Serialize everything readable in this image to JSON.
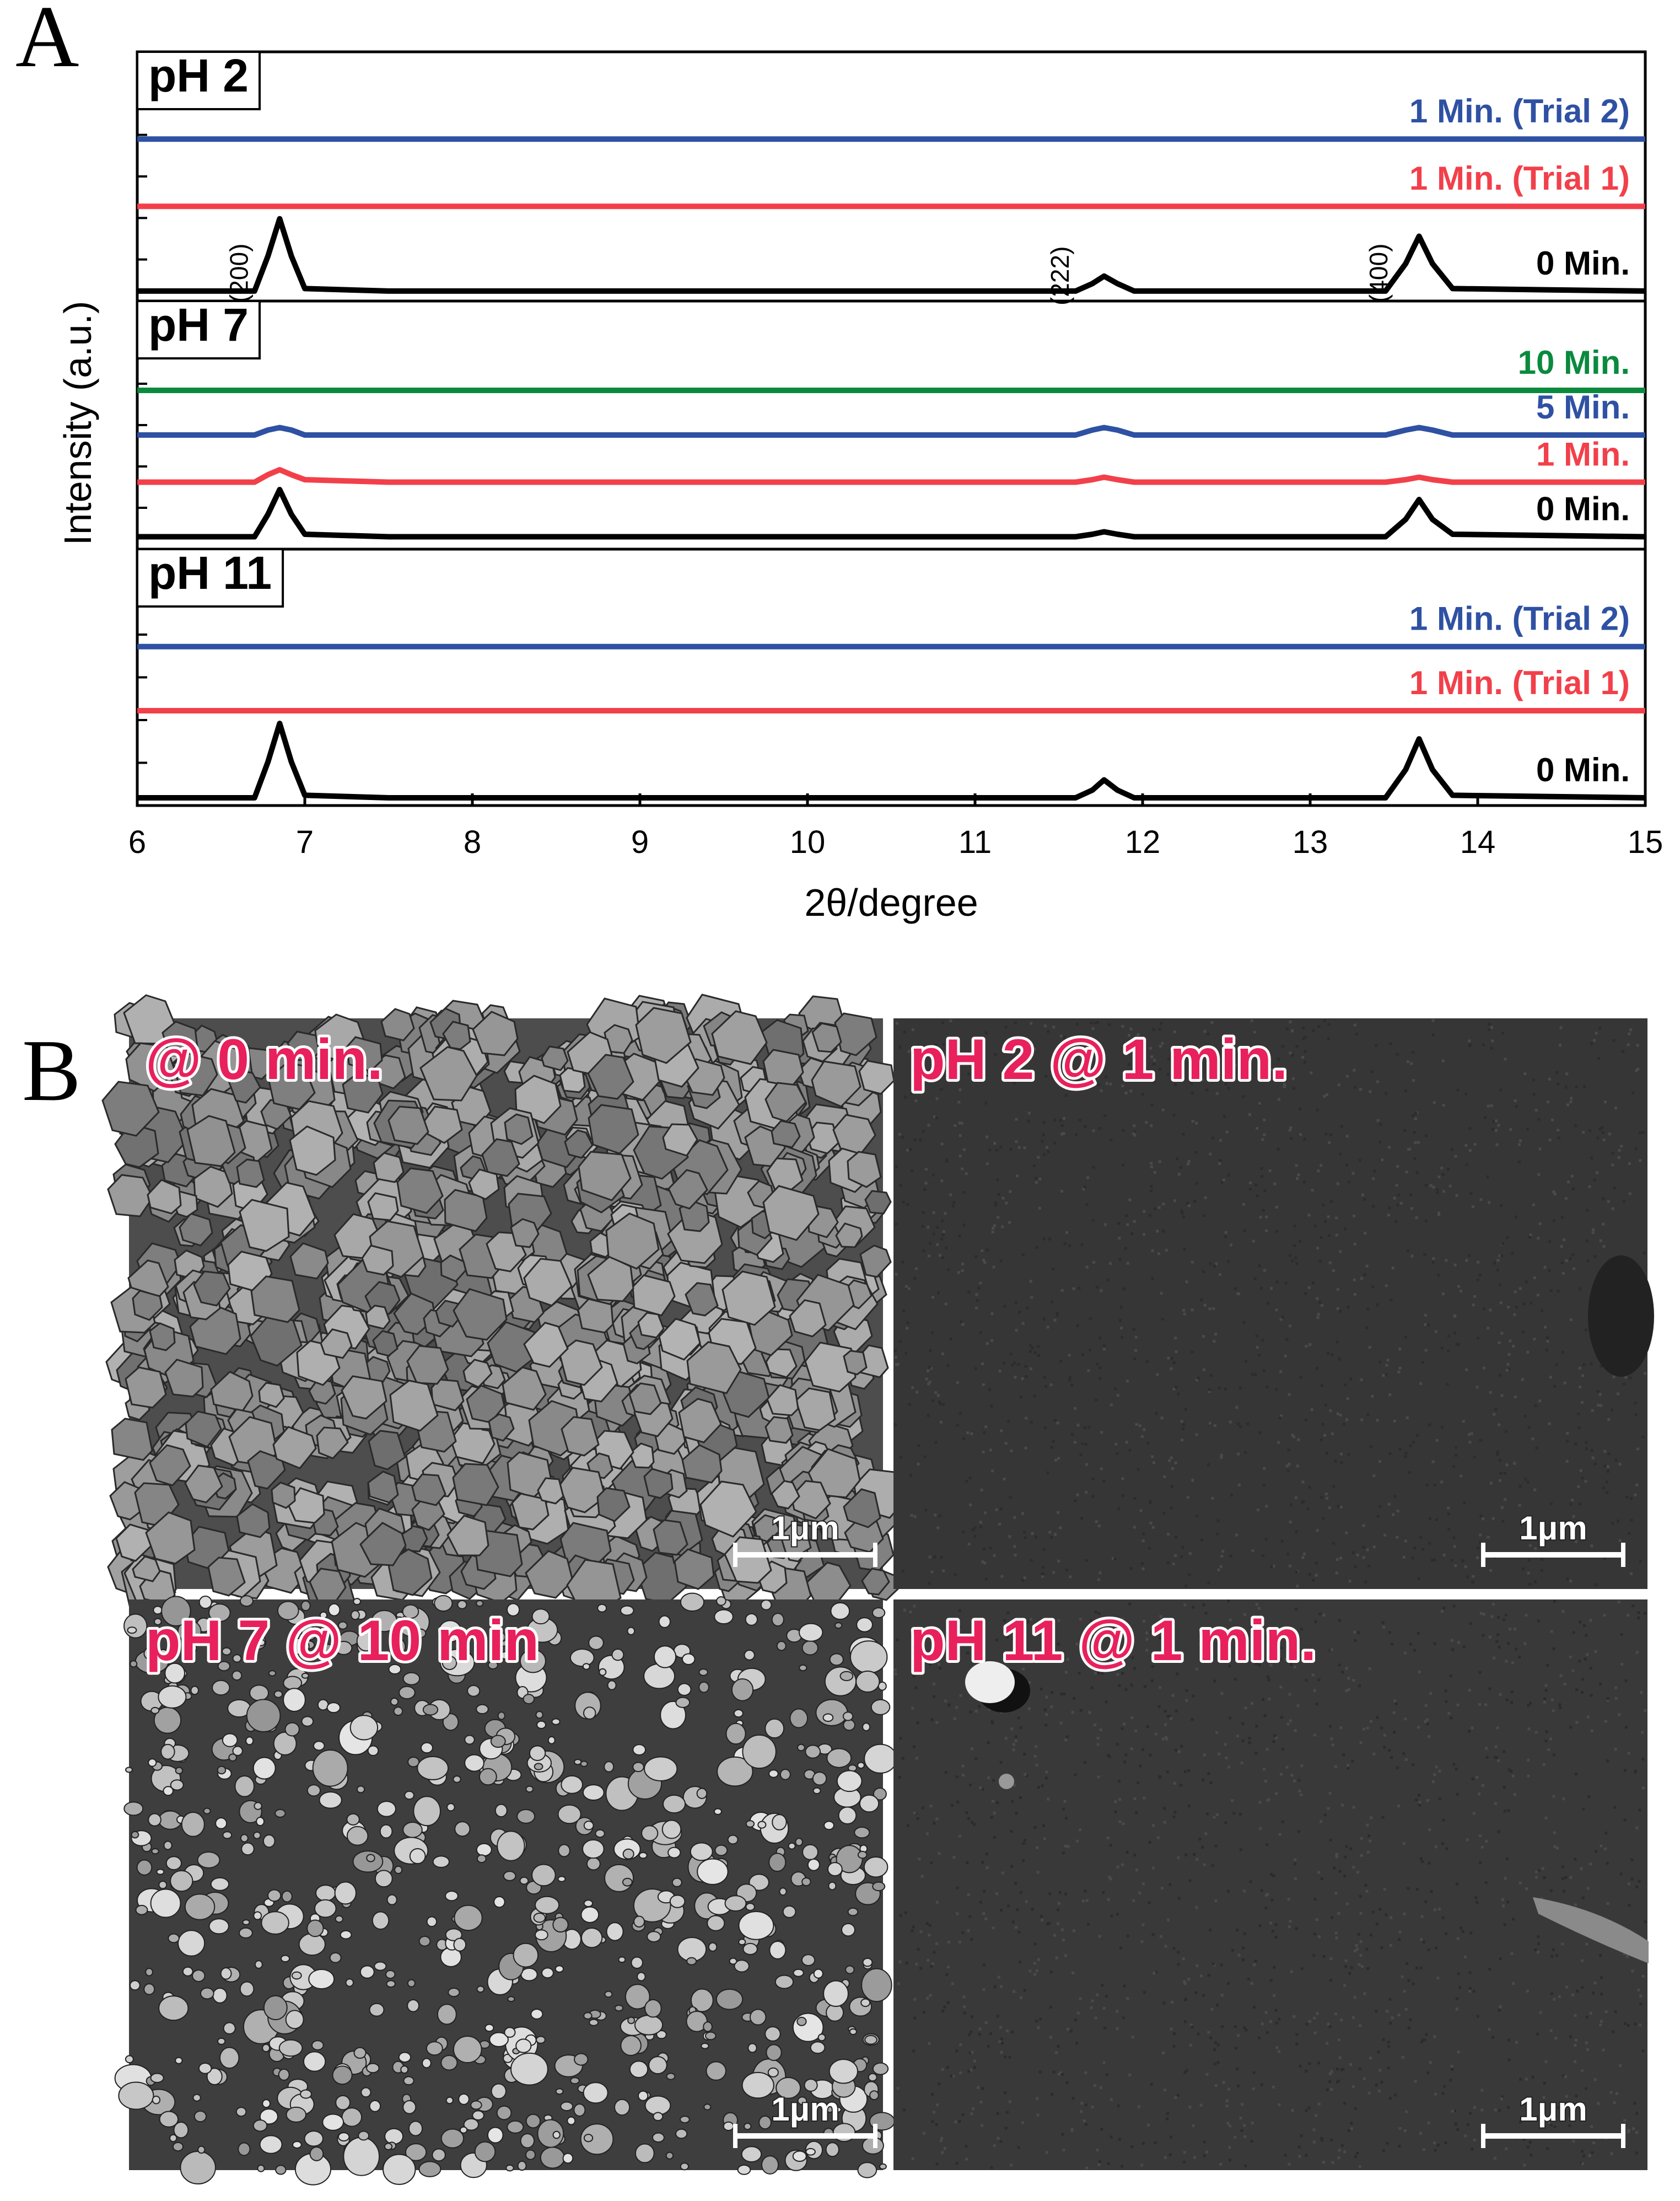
{
  "chart_data": [
    {
      "type": "line",
      "title": "pH 2",
      "x": [
        6,
        6.7,
        6.78,
        6.85,
        6.92,
        7.0,
        7.5,
        11.6,
        11.7,
        11.77,
        11.85,
        11.95,
        13.45,
        13.57,
        13.65,
        13.73,
        13.85,
        15
      ],
      "xlim": [
        6,
        15
      ],
      "ylim": [
        0,
        100
      ],
      "annotations": [
        "(200)",
        "(222)",
        "(400)"
      ],
      "series": [
        {
          "name": "1 Min. (Trial 2)",
          "color": "#2f51a3",
          "values": [
            65,
            65,
            65,
            65,
            65,
            65,
            65,
            65,
            65,
            65,
            65,
            65,
            65,
            65,
            65,
            65,
            65,
            65
          ]
        },
        {
          "name": "1 Min. (Trial 1)",
          "color": "#f2404a",
          "values": [
            38,
            38,
            38,
            38,
            38,
            38,
            38,
            38,
            38,
            38,
            38,
            38,
            38,
            38,
            38,
            38,
            38,
            38
          ]
        },
        {
          "name": "0 Min.",
          "color": "#000000",
          "values": [
            4,
            4,
            18,
            33,
            18,
            5,
            4,
            4,
            7,
            10,
            7,
            4,
            4,
            15,
            26,
            15,
            5,
            4
          ]
        }
      ]
    },
    {
      "type": "line",
      "title": "pH 7",
      "ylabel": "Intensity (a.u.)",
      "x": [
        6,
        6.7,
        6.78,
        6.85,
        6.92,
        7.0,
        7.5,
        11.6,
        11.7,
        11.77,
        11.85,
        11.95,
        13.45,
        13.57,
        13.65,
        13.73,
        13.85,
        15
      ],
      "xlim": [
        6,
        15
      ],
      "ylim": [
        0,
        100
      ],
      "series": [
        {
          "name": "10 Min.",
          "color": "#0b8a3e",
          "values": [
            64,
            64,
            64,
            64,
            64,
            64,
            64,
            64,
            64,
            64,
            64,
            64,
            64,
            64,
            64,
            64,
            64,
            64
          ]
        },
        {
          "name": "5 Min.",
          "color": "#2f51a3",
          "values": [
            46,
            46,
            48,
            49,
            48,
            46,
            46,
            46,
            48,
            49,
            48,
            46,
            46,
            48,
            49,
            48,
            46,
            46
          ]
        },
        {
          "name": "1 Min.",
          "color": "#f2404a",
          "values": [
            27,
            27,
            30,
            32,
            30,
            28,
            27,
            27,
            28,
            29,
            28,
            27,
            27,
            28,
            29,
            28,
            27,
            27
          ]
        },
        {
          "name": "0 Min.",
          "color": "#000000",
          "values": [
            5,
            5,
            14,
            24,
            14,
            6,
            5,
            5,
            6,
            7,
            6,
            5,
            5,
            12,
            20,
            12,
            6,
            5
          ]
        }
      ]
    },
    {
      "type": "line",
      "title": "pH 11",
      "xlabel": "2θ/degree",
      "x": [
        6,
        6.7,
        6.78,
        6.85,
        6.92,
        7.0,
        7.5,
        11.6,
        11.7,
        11.77,
        11.85,
        11.95,
        13.45,
        13.57,
        13.65,
        13.73,
        13.85,
        15
      ],
      "xlim": [
        6,
        15
      ],
      "ylim": [
        0,
        100
      ],
      "xticks": [
        6,
        7,
        8,
        9,
        10,
        11,
        12,
        13,
        14,
        15
      ],
      "series": [
        {
          "name": "1 Min. (Trial 2)",
          "color": "#2f51a3",
          "values": [
            62,
            62,
            62,
            62,
            62,
            62,
            62,
            62,
            62,
            62,
            62,
            62,
            62,
            62,
            62,
            62,
            62,
            62
          ]
        },
        {
          "name": "1 Min. (Trial 1)",
          "color": "#f2404a",
          "values": [
            37,
            37,
            37,
            37,
            37,
            37,
            37,
            37,
            37,
            37,
            37,
            37,
            37,
            37,
            37,
            37,
            37,
            37
          ]
        },
        {
          "name": "0 Min.",
          "color": "#000000",
          "values": [
            3,
            3,
            17,
            32,
            17,
            4,
            3,
            3,
            6,
            10,
            6,
            3,
            3,
            14,
            26,
            14,
            4,
            3
          ]
        }
      ]
    }
  ],
  "figure": {
    "label_a": "A",
    "label_b": "B",
    "sem_images": [
      {
        "label": "@ 0 min.",
        "scale_bar": "1μm"
      },
      {
        "label": "pH 2 @ 1 min.",
        "scale_bar": "1μm"
      },
      {
        "label": "pH 7 @ 10 min",
        "scale_bar": "1μm"
      },
      {
        "label": "pH 11 @ 1 min.",
        "scale_bar": "1μm"
      }
    ]
  }
}
